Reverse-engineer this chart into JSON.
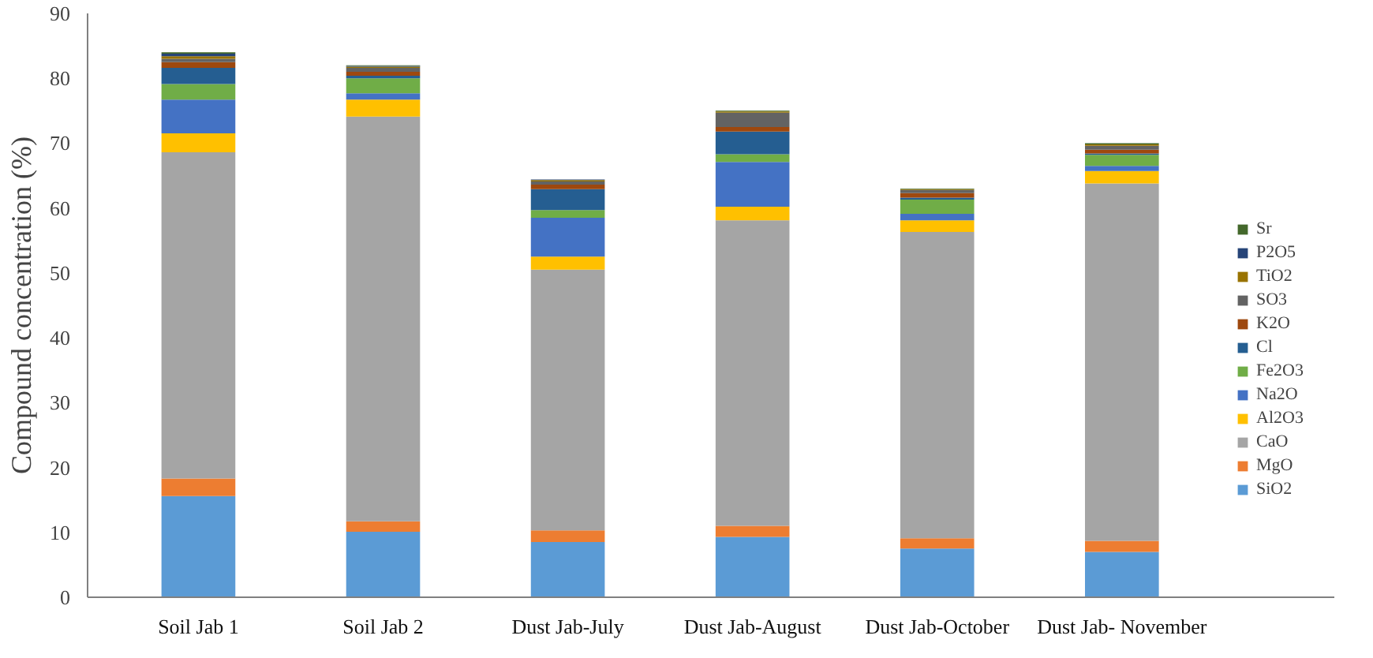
{
  "chart_data": {
    "type": "bar",
    "stacked": true,
    "ylabel": "Compound concentration (%)",
    "categories": [
      "Soil Jab 1",
      "Soil Jab 2",
      "Dust Jab-July",
      "Dust Jab-August",
      "Dust Jab-October",
      "Dust Jab- November"
    ],
    "ylim": [
      0,
      90
    ],
    "yticks": [
      0,
      10,
      20,
      30,
      40,
      50,
      60,
      70,
      80,
      90
    ],
    "grid": false,
    "legend": "right",
    "series": [
      {
        "name": "SiO2",
        "color": "#5b9bd5",
        "values": [
          15.6,
          10.1,
          8.5,
          9.3,
          7.5,
          7.0
        ]
      },
      {
        "name": "MgO",
        "color": "#ed7d31",
        "values": [
          2.7,
          1.6,
          1.8,
          1.7,
          1.6,
          1.7
        ]
      },
      {
        "name": "CaO",
        "color": "#a5a5a5",
        "values": [
          50.3,
          62.4,
          40.2,
          47.1,
          47.2,
          55.1
        ]
      },
      {
        "name": "Al2O3",
        "color": "#ffc000",
        "values": [
          2.9,
          2.6,
          2.0,
          2.1,
          1.8,
          1.9
        ]
      },
      {
        "name": "Na2O",
        "color": "#4472c4",
        "values": [
          5.2,
          1.0,
          6.0,
          6.9,
          1.0,
          0.8
        ]
      },
      {
        "name": "Fe2O3",
        "color": "#70ad47",
        "values": [
          2.4,
          2.3,
          1.2,
          1.2,
          2.2,
          1.7
        ]
      },
      {
        "name": "Cl",
        "color": "#255e91",
        "values": [
          2.5,
          0.4,
          3.2,
          3.5,
          0.3,
          0.2
        ]
      },
      {
        "name": "K2O",
        "color": "#9e480e",
        "values": [
          0.9,
          0.6,
          0.7,
          0.7,
          0.7,
          0.6
        ]
      },
      {
        "name": "SO3",
        "color": "#636363",
        "values": [
          0.5,
          0.6,
          0.5,
          2.2,
          0.5,
          0.6
        ]
      },
      {
        "name": "TiO2",
        "color": "#997300",
        "values": [
          0.4,
          0.2,
          0.2,
          0.2,
          0.1,
          0.2
        ]
      },
      {
        "name": "P2O5",
        "color": "#264478",
        "values": [
          0.4,
          0.1,
          0.1,
          0.0,
          0.0,
          0.0
        ]
      },
      {
        "name": "Sr",
        "color": "#43682b",
        "values": [
          0.2,
          0.1,
          null,
          0.1,
          0.1,
          0.2
        ]
      }
    ]
  }
}
